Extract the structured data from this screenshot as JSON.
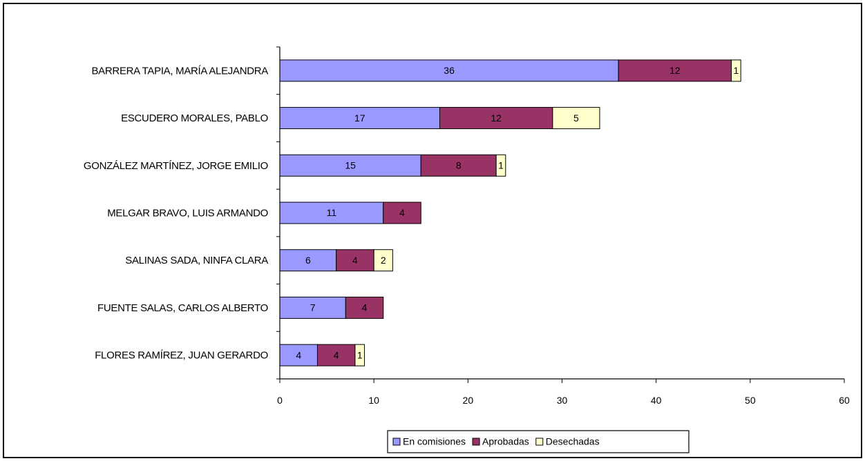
{
  "chart_data": {
    "type": "bar",
    "orientation": "horizontal",
    "stacked": true,
    "categories": [
      "BARRERA TAPIA, MARÍA ALEJANDRA",
      "ESCUDERO MORALES, PABLO",
      "GONZÁLEZ MARTÍNEZ, JORGE EMILIO",
      "MELGAR BRAVO, LUIS ARMANDO",
      "SALINAS SADA, NINFA CLARA",
      "FUENTE SALAS, CARLOS ALBERTO",
      "FLORES RAMÍREZ, JUAN GERARDO"
    ],
    "series": [
      {
        "name": "En comisiones",
        "color": "#9999FF",
        "values": [
          36,
          17,
          15,
          11,
          6,
          7,
          4
        ]
      },
      {
        "name": "Aprobadas",
        "color": "#993366",
        "values": [
          12,
          12,
          8,
          4,
          4,
          4,
          4
        ]
      },
      {
        "name": "Desechadas",
        "color": "#FFFFCC",
        "values": [
          1,
          5,
          1,
          0,
          2,
          0,
          1
        ]
      }
    ],
    "xlim": [
      0,
      60
    ],
    "xticks": [
      0,
      10,
      20,
      30,
      40,
      50,
      60
    ],
    "title": "",
    "xlabel": "",
    "ylabel": "",
    "grid": false,
    "legend_position": "bottom"
  }
}
